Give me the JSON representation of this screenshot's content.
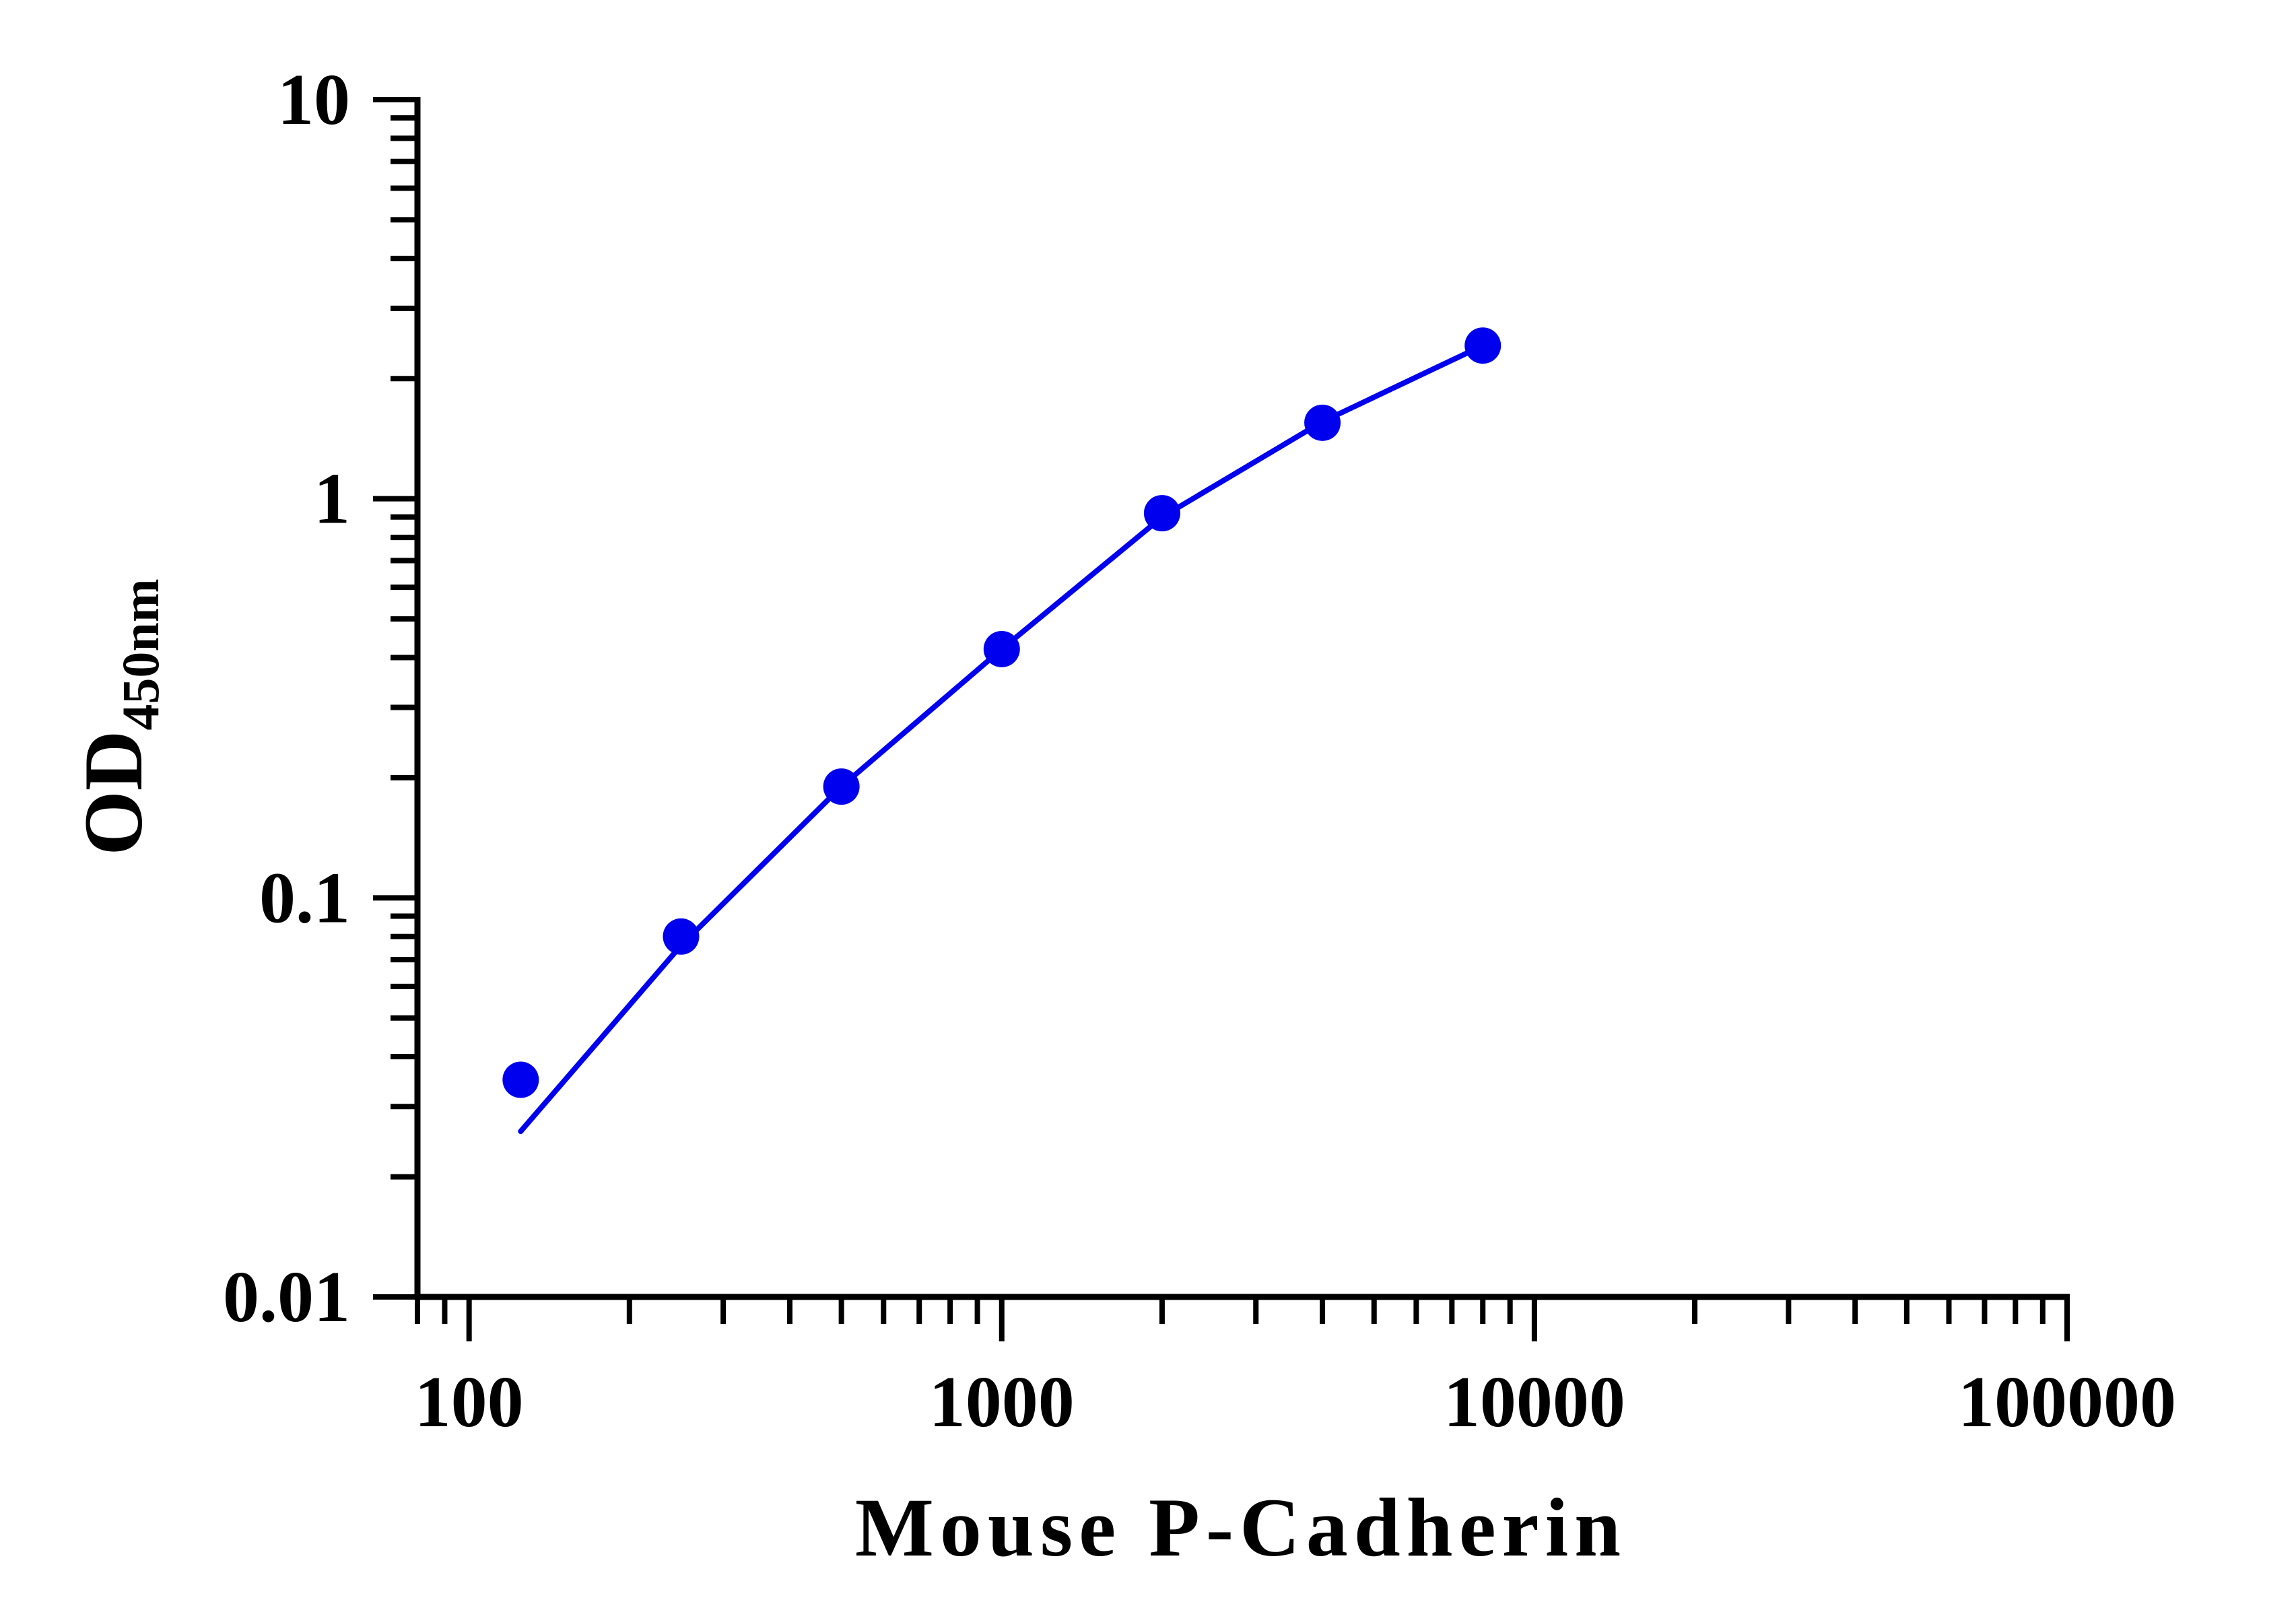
{
  "chart_data": {
    "type": "scatter",
    "title": "",
    "xlabel": "Mouse P-Cadherin",
    "ylabel": "OD",
    "ylabel_subscript": "450nm",
    "x_scale": "log",
    "y_scale": "log",
    "xlim": [
      80,
      100000
    ],
    "ylim": [
      0.01,
      10
    ],
    "x_ticks": [
      100,
      1000,
      10000,
      100000
    ],
    "x_tick_labels": [
      "100",
      "1000",
      "10000",
      "100000"
    ],
    "y_ticks": [
      0.01,
      0.1,
      1,
      10
    ],
    "y_tick_labels": [
      "0.01",
      "0.1",
      "1",
      "10"
    ],
    "grid": false,
    "series": [
      {
        "points": [
          {
            "x": 125,
            "y": 0.035
          },
          {
            "x": 250,
            "y": 0.08
          },
          {
            "x": 500,
            "y": 0.19
          },
          {
            "x": 1000,
            "y": 0.42
          },
          {
            "x": 2000,
            "y": 0.92
          },
          {
            "x": 4000,
            "y": 1.55
          },
          {
            "x": 8000,
            "y": 2.42
          }
        ],
        "fit_curve": [
          {
            "x": 125,
            "y": 0.026
          },
          {
            "x": 250,
            "y": 0.076
          },
          {
            "x": 500,
            "y": 0.19
          },
          {
            "x": 1000,
            "y": 0.42
          },
          {
            "x": 2000,
            "y": 0.9
          },
          {
            "x": 4000,
            "y": 1.56
          },
          {
            "x": 8000,
            "y": 2.42
          }
        ],
        "color": "#0000ee"
      }
    ]
  }
}
